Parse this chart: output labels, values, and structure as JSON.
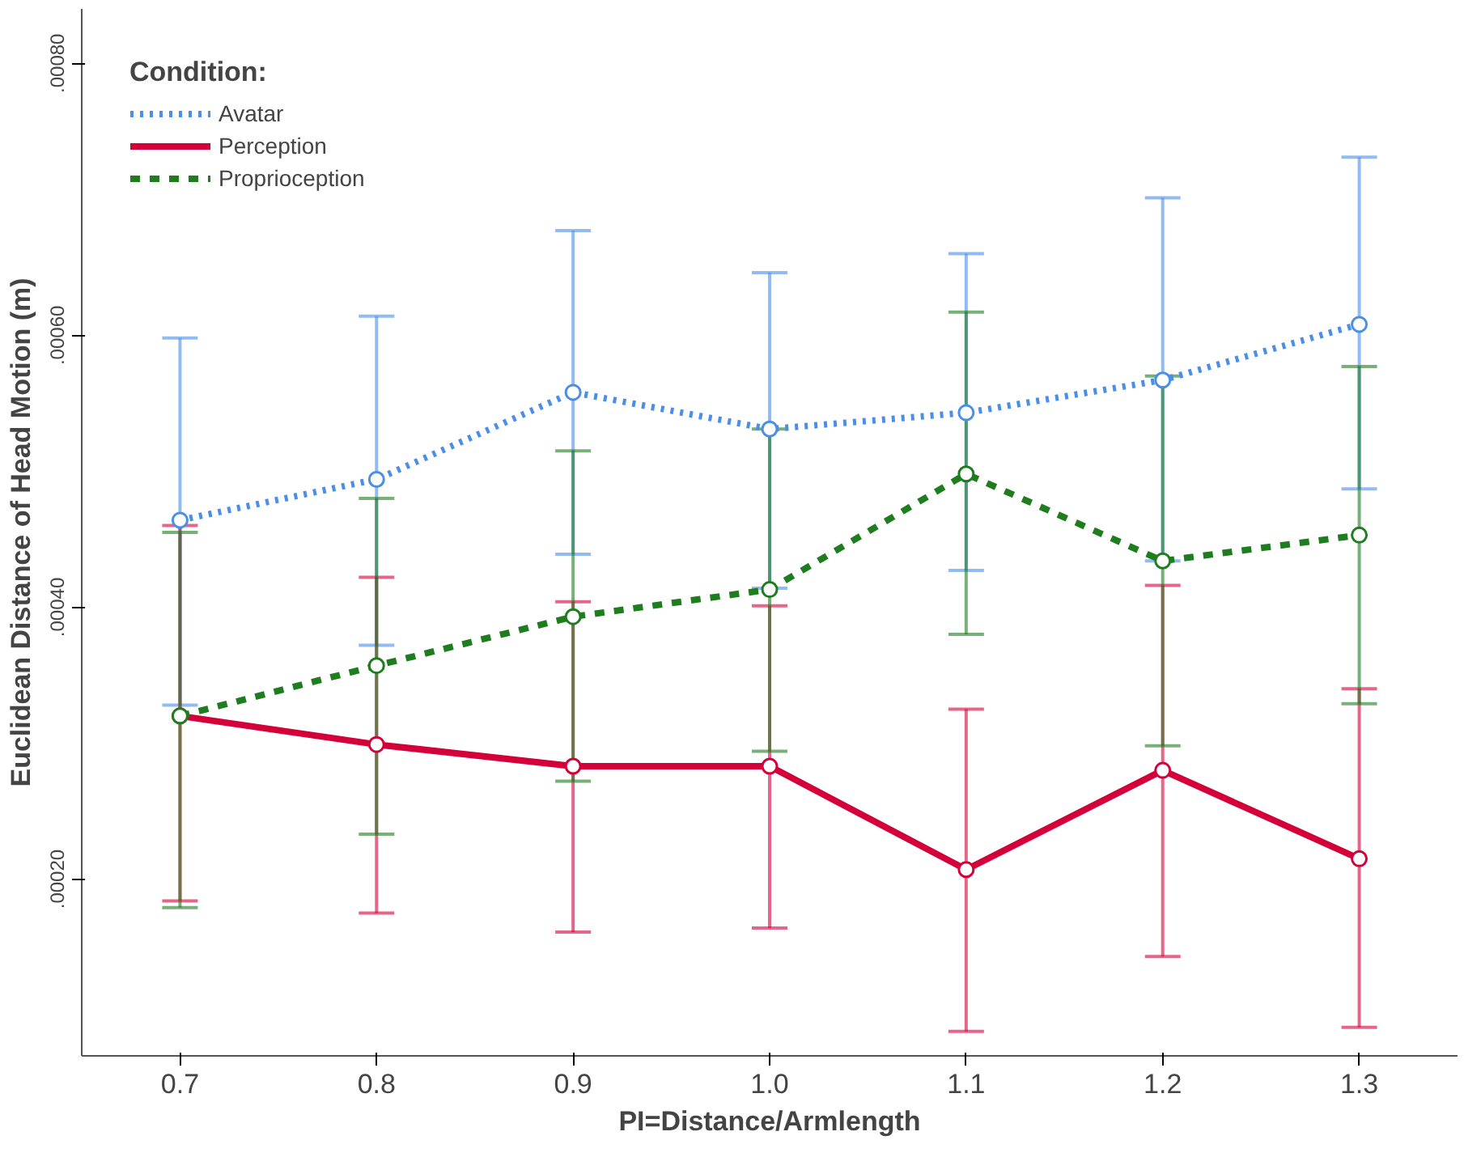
{
  "chart_data": {
    "type": "line",
    "xlabel": "PI=Distance/Armlength",
    "ylabel": "Euclidean Distance of Head Motion (m)",
    "legend_title": "Condition:",
    "categories": [
      "0.7",
      "0.8",
      "0.9",
      "1.0",
      "1.1",
      "1.2",
      "1.3"
    ],
    "series": [
      {
        "name": "Avatar",
        "color": "#4a8ee8",
        "line_style": "dotted",
        "values": [
          0.000464,
          0.000494,
          0.000558,
          0.000531,
          0.000543,
          0.000567,
          0.000608
        ],
        "errors": [
          [
            0.000328,
            0.000598
          ],
          [
            0.000372,
            0.000614
          ],
          [
            0.000439,
            0.000677
          ],
          [
            0.000414,
            0.000646
          ],
          [
            0.000427,
            0.00066
          ],
          [
            0.000434,
            0.000701
          ],
          [
            0.000487,
            0.000731
          ]
        ]
      },
      {
        "name": "Perception",
        "color": "#d4003a",
        "line_style": "solid",
        "values": [
          0.00032,
          0.000299,
          0.000283,
          0.000283,
          0.000207,
          0.00028,
          0.000215
        ],
        "errors": [
          [
            0.000184,
            0.00046
          ],
          [
            0.000175,
            0.000422
          ],
          [
            0.000161,
            0.000404
          ],
          [
            0.000164,
            0.000401
          ],
          [
            8.8e-05,
            0.000325
          ],
          [
            0.000143,
            0.000416
          ],
          [
            9.1e-05,
            0.00034
          ]
        ]
      },
      {
        "name": "Proprioception",
        "color": "#1e7d1e",
        "line_style": "dashed",
        "values": [
          0.00032,
          0.000357,
          0.000393,
          0.000413,
          0.000498,
          0.000434,
          0.000453
        ],
        "errors": [
          [
            0.000179,
            0.000455
          ],
          [
            0.000233,
            0.00048
          ],
          [
            0.000272,
            0.000515
          ],
          [
            0.000294,
            0.000531
          ],
          [
            0.00038,
            0.000617
          ],
          [
            0.000298,
            0.00057
          ],
          [
            0.000329,
            0.000577
          ]
        ]
      }
    ],
    "ylim": [
      7e-05,
      0.00084
    ],
    "yticks": [
      {
        "value": 0.0002,
        "label": ".00020"
      },
      {
        "value": 0.0004,
        "label": ".00040"
      },
      {
        "value": 0.0006,
        "label": ".00060"
      },
      {
        "value": 0.0008,
        "label": ".00080"
      }
    ],
    "marker": "circle",
    "grid": false,
    "legend": "top left"
  }
}
